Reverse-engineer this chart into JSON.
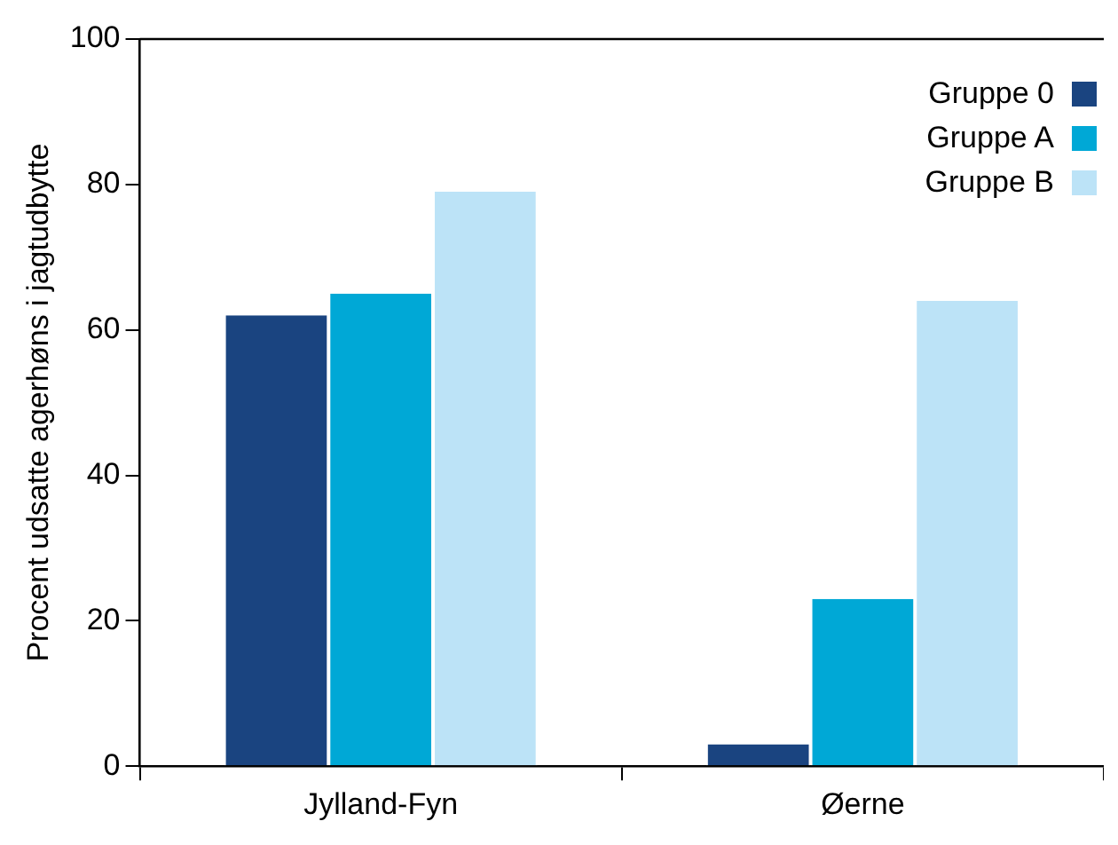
{
  "chart_data": {
    "type": "bar",
    "ylabel": "Procent udsatte agerhøns i jagtudbytte",
    "categories": [
      "Jylland-Fyn",
      "Øerne"
    ],
    "series": [
      {
        "name": "Gruppe 0",
        "color": "#1a4480",
        "values": [
          62,
          3
        ]
      },
      {
        "name": "Gruppe A",
        "color": "#00a8d6",
        "values": [
          65,
          23
        ]
      },
      {
        "name": "Gruppe B",
        "color": "#bce3f7",
        "values": [
          79,
          64
        ]
      }
    ],
    "ylim": [
      0,
      100
    ],
    "yticks": [
      0,
      20,
      40,
      60,
      80,
      100
    ],
    "grid": false,
    "legend": "top right"
  }
}
